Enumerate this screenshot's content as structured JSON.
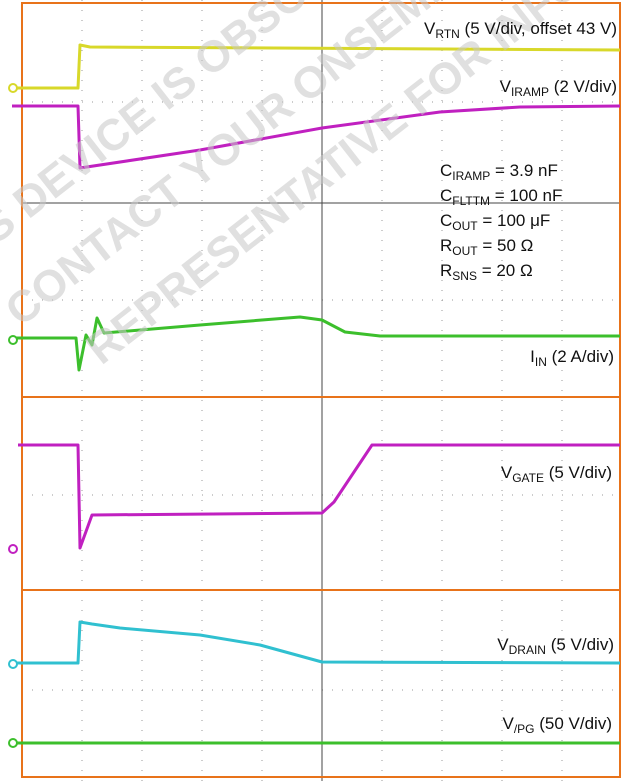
{
  "traces": [
    {
      "main": "V",
      "sub": "RTN",
      "rest": " (5 V/div, offset 43 V)"
    },
    {
      "main": "V",
      "sub": "IRAMP",
      "rest": " (2 V/div)"
    },
    {
      "main": "I",
      "sub": "IN",
      "rest": " (2 A/div)"
    },
    {
      "main": "V",
      "sub": "GATE",
      "rest": " (5 V/div)"
    },
    {
      "main": "V",
      "sub": "DRAIN",
      "rest": " (5 V/div)"
    },
    {
      "main": "V",
      "sub": "/PG",
      "rest": " (50 V/div)"
    }
  ],
  "conditions": [
    {
      "main": "C",
      "sub": "IRAMP",
      "rest": " = 3.9 nF"
    },
    {
      "main": "C",
      "sub": "FLTTM",
      "rest": " = 100 nF"
    },
    {
      "main": "C",
      "sub": "OUT",
      "rest": " = 100 μF"
    },
    {
      "main": "R",
      "sub": "OUT",
      "rest": " = 50 Ω"
    },
    {
      "main": "R",
      "sub": "SNS",
      "rest": " = 20 Ω"
    }
  ],
  "watermark": [
    "THIS DEVICE IS OBSOLETE",
    "CONTACT YOUR ONSEMI",
    "REPRESENTATIVE FOR INFORMATION"
  ]
}
